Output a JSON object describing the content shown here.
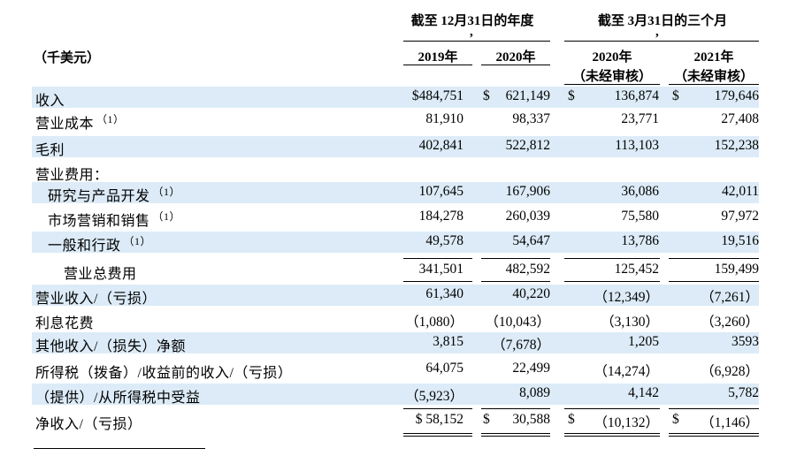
{
  "header": {
    "unit_label": "（千美元）",
    "group1_title": "截至 12月31日的年度",
    "group2_title": "截至 3月31日的三个月",
    "comma": ",",
    "col_2019": "2019年",
    "col_2020": "2020年",
    "col_q2020": "2020年",
    "col_q2021": "2021年",
    "unaudited": "（未经审核）"
  },
  "currency": "$",
  "rows": [
    {
      "label": "收入",
      "sup": "",
      "indent": 0,
      "shade": true,
      "v": [
        "$484,751",
        "621,149",
        "136,874",
        "179,646"
      ],
      "cur": [
        false,
        true,
        true,
        true
      ]
    },
    {
      "label": "营业成本",
      "sup": "（1）",
      "indent": 0,
      "shade": false,
      "v": [
        "81,910",
        "98,337",
        "23,771",
        "27,408"
      ]
    },
    {
      "label": "毛利",
      "sup": "",
      "indent": 0,
      "shade": true,
      "v": [
        "402,841",
        "522,812",
        "113,103",
        "152,238"
      ]
    },
    {
      "label": "营业费用：",
      "sup": "",
      "indent": 0,
      "shade": false,
      "v": [
        "",
        "",
        "",
        ""
      ]
    },
    {
      "label": "研究与产品开发",
      "sup": "（1）",
      "indent": 1,
      "shade": true,
      "v": [
        "107,645",
        "167,906",
        "36,086",
        "42,011"
      ]
    },
    {
      "label": "市场营销和销售",
      "sup": "（1）",
      "indent": 1,
      "shade": false,
      "v": [
        "184,278",
        "260,039",
        "75,580",
        "97,972"
      ]
    },
    {
      "label": "一般和行政",
      "sup": "（1）",
      "indent": 1,
      "shade": true,
      "v": [
        "49,578",
        "54,647",
        "13,786",
        "19,516"
      ]
    },
    {
      "label": "营业总费用",
      "sup": "",
      "indent": 2,
      "shade": false,
      "v": [
        "341,501",
        "482,592",
        "125,452",
        "159,499"
      ]
    },
    {
      "label": "营业收入/（亏损）",
      "sup": "",
      "indent": 0,
      "shade": true,
      "v": [
        "61,340",
        "40,220",
        "（12,349）",
        "（7,261）"
      ]
    },
    {
      "label": "利息花费",
      "sup": "",
      "indent": 0,
      "shade": false,
      "v": [
        "（1,080）",
        "（10,043）",
        "（3,130）",
        "（3,260）"
      ]
    },
    {
      "label": "其他收入/（损失）净额",
      "sup": "",
      "indent": 0,
      "shade": true,
      "v": [
        "3,815",
        "（7,678）",
        "1,205",
        "3593"
      ]
    },
    {
      "label": "所得税（拨备）/收益前的收入/（亏损）",
      "sup": "",
      "indent": 0,
      "shade": false,
      "v": [
        "64,075",
        "22,499",
        "（14,274）",
        "（6,928）"
      ]
    },
    {
      "label": "（提供）/从所得税中受益",
      "sup": "",
      "indent": 0,
      "shade": true,
      "v": [
        "（5,923）",
        "8,089",
        "4,142",
        "5,782"
      ]
    },
    {
      "label": "净收入/（亏损）",
      "sup": "",
      "indent": 0,
      "shade": false,
      "v": [
        "$ 58,152",
        "30,588",
        "（10,132）",
        "（1,146）"
      ],
      "cur": [
        false,
        true,
        true,
        true
      ]
    }
  ]
}
